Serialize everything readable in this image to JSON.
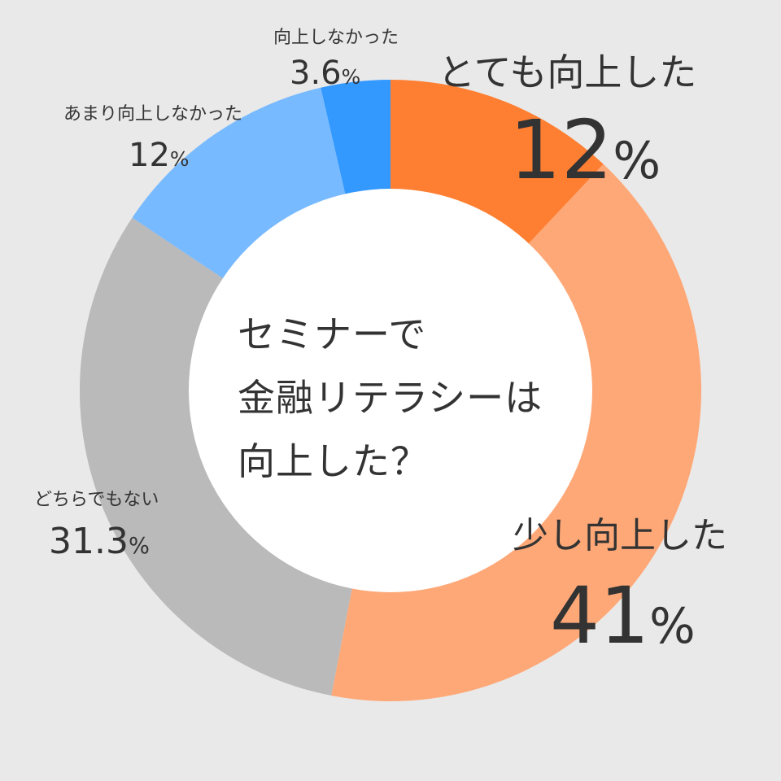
{
  "chart_data": {
    "type": "pie",
    "title": "",
    "center_text": [
      "セミナーで",
      "金融リテラシーは",
      "向上した？"
    ],
    "slices": [
      {
        "label": "とても向上した",
        "value": 12,
        "value_text": "12",
        "color": "#ff7f32"
      },
      {
        "label": "少し向上した",
        "value": 41,
        "value_text": "41",
        "color": "#ffa877"
      },
      {
        "label": "どちらでもない",
        "value": 31.3,
        "value_text": "31.3",
        "color": "#bababa"
      },
      {
        "label": "あまり向上しなかった",
        "value": 12,
        "value_text": "12",
        "color": "#78baff"
      },
      {
        "label": "向上しなかった",
        "value": 3.6,
        "value_text": "3.6",
        "color": "#3399ff"
      }
    ],
    "unit": "%",
    "legend": "none"
  }
}
